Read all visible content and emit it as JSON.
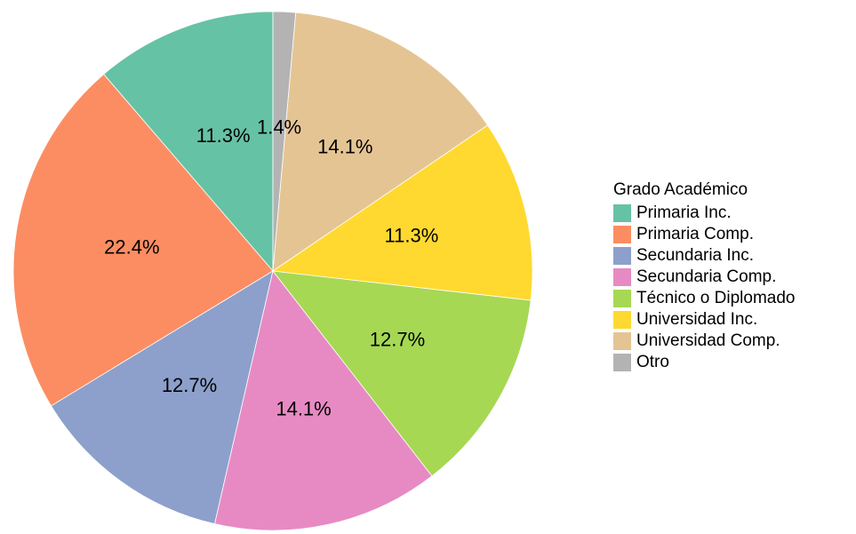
{
  "chart_data": {
    "type": "pie",
    "legend_title": "Grado Académico",
    "categories": [
      "Primaria Inc.",
      "Primaria Comp.",
      "Secundaria Inc.",
      "Secundaria Comp.",
      "Técnico o Diplomado",
      "Universidad Inc.",
      "Universidad Comp.",
      "Otro"
    ],
    "values": [
      11.3,
      22.4,
      12.7,
      14.1,
      12.7,
      11.3,
      14.1,
      1.4
    ],
    "value_labels": [
      "11.3%",
      "22.4%",
      "12.7%",
      "14.1%",
      "12.7%",
      "11.3%",
      "14.1%",
      "1.4%"
    ],
    "colors": [
      "#66c2a5",
      "#fc8d62",
      "#8da0cb",
      "#e78ac3",
      "#a6d854",
      "#ffd92f",
      "#e5c494",
      "#b3b3b3"
    ],
    "direction": "counterclockwise",
    "legend": "right"
  }
}
